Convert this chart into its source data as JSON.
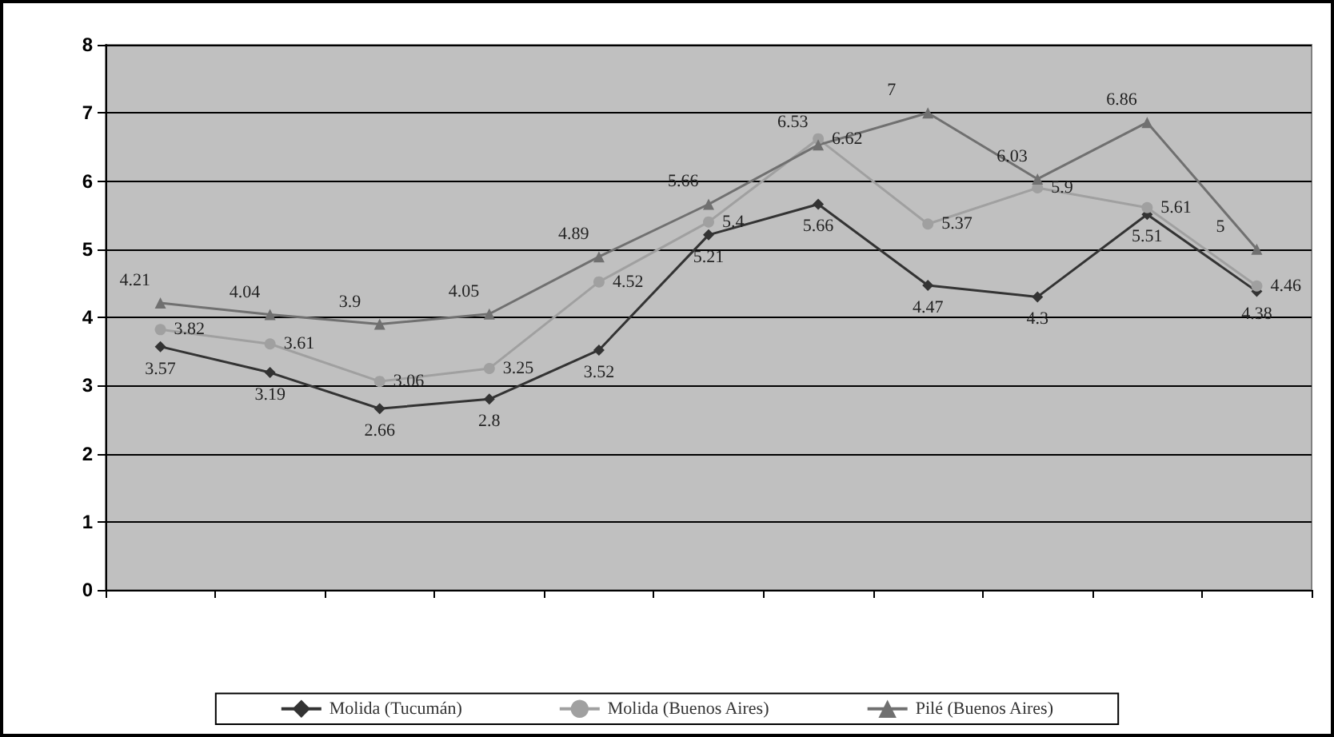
{
  "chart_data": {
    "type": "line",
    "categories": [
      null,
      null,
      null,
      null,
      null,
      null,
      null,
      null,
      null,
      null,
      null
    ],
    "series": [
      {
        "name": "Molida (Tucumán)",
        "color": "#333333",
        "marker": "diamond",
        "values": [
          3.57,
          3.19,
          2.66,
          2.8,
          3.52,
          5.21,
          5.66,
          4.47,
          4.3,
          5.51,
          4.38
        ]
      },
      {
        "name": "Molida (Buenos Aires)",
        "color": "#a0a0a0",
        "marker": "circle",
        "values": [
          3.82,
          3.61,
          3.06,
          3.25,
          4.52,
          5.4,
          6.62,
          5.37,
          5.9,
          5.61,
          4.46
        ]
      },
      {
        "name": "Pilé (Buenos Aires)",
        "color": "#707070",
        "marker": "triangle",
        "values": [
          4.21,
          4.04,
          3.9,
          4.05,
          4.89,
          5.66,
          6.53,
          7,
          6.03,
          6.86,
          5
        ]
      }
    ],
    "ylim": [
      0,
      8
    ],
    "yticks": [
      0,
      1,
      2,
      3,
      4,
      5,
      6,
      7,
      8
    ],
    "grid": "y",
    "legend": "bottom",
    "data_labels": true
  }
}
